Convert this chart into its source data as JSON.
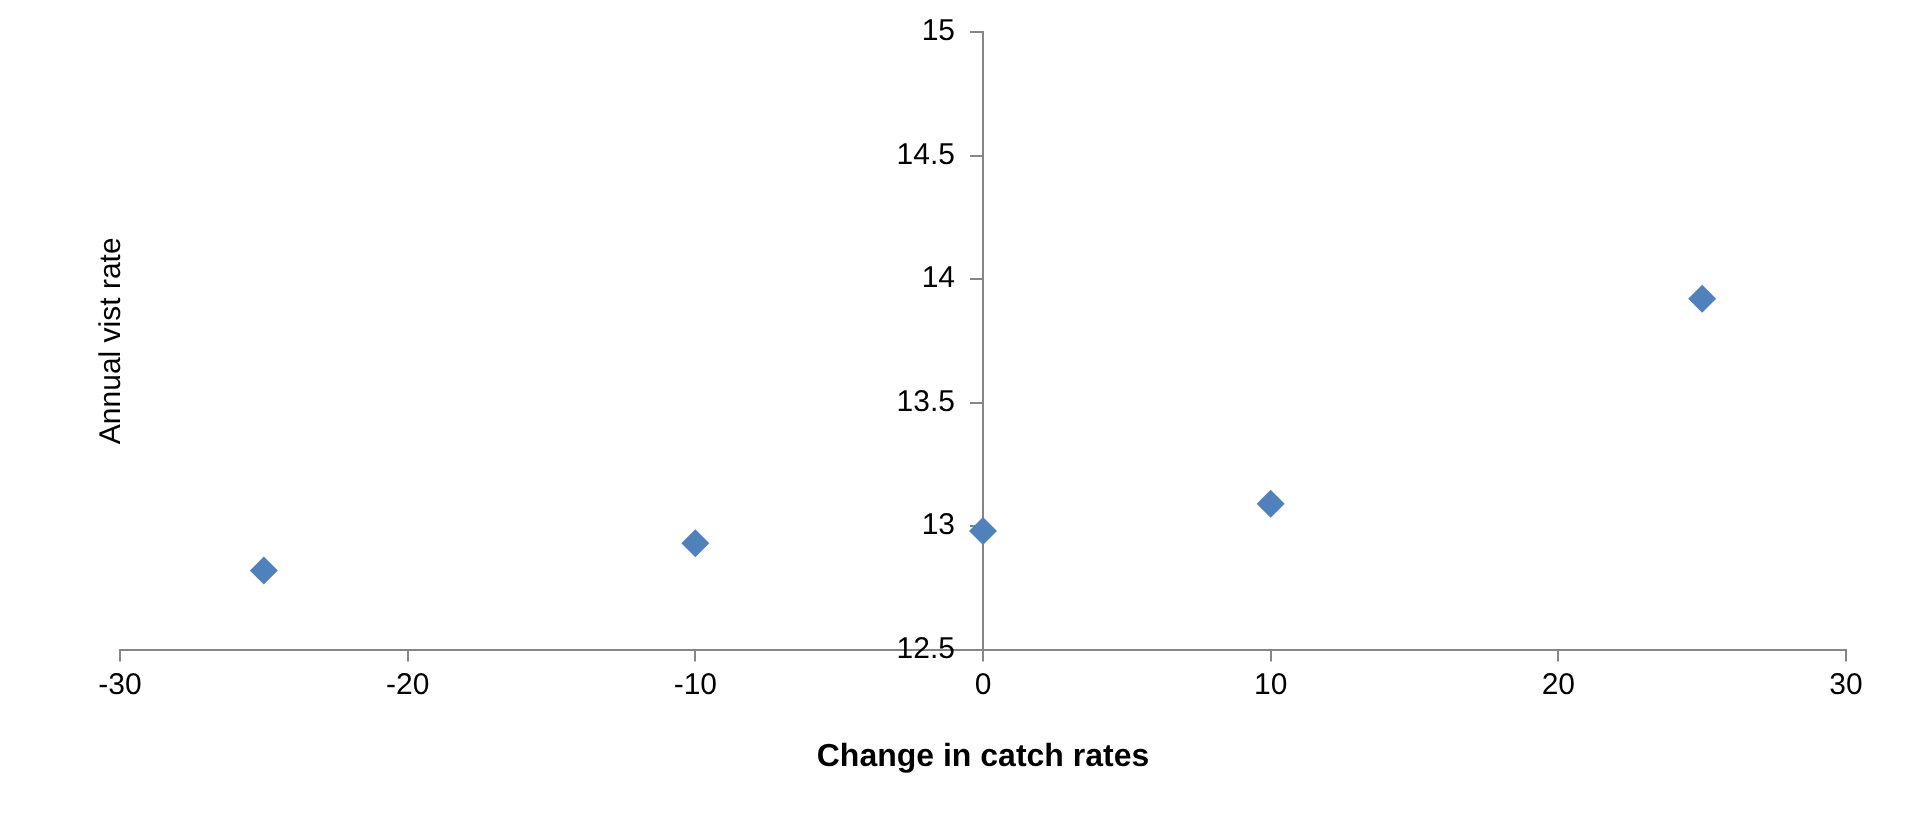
{
  "chart_data": {
    "type": "scatter",
    "xlabel": "Change in catch rates",
    "ylabel": "Annual vist rate",
    "x": [
      -25,
      -10,
      0,
      10,
      25
    ],
    "series": [
      {
        "color": "#4f81bd",
        "values": [
          12.82,
          12.93,
          12.98,
          13.09,
          13.92
        ]
      }
    ],
    "xlim": [
      -30,
      30
    ],
    "xticks": [
      -30,
      -20,
      -10,
      0,
      10,
      20,
      30
    ],
    "ylim": [
      12.5,
      15
    ],
    "yticks": [
      12.5,
      13,
      13.5,
      14,
      14.5,
      15
    ],
    "grid": false,
    "legend": false,
    "marker": "diamond"
  }
}
